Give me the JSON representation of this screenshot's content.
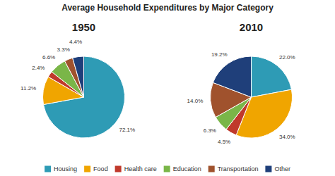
{
  "chart_data": {
    "type": "pie",
    "title": "Average Household Expenditures by Major Category",
    "categories": [
      "Housing",
      "Food",
      "Health care",
      "Education",
      "Transportation",
      "Other"
    ],
    "colors": [
      "#2E9BB5",
      "#F0A500",
      "#C0392B",
      "#7AB648",
      "#A0522D",
      "#1F3F7A"
    ],
    "series": [
      {
        "name": "1950",
        "values": [
          72.1,
          11.2,
          2.4,
          6.6,
          3.3,
          4.4
        ],
        "value_labels": [
          "72.1%",
          "11.2%",
          "2.4%",
          "6.6%",
          "3.3%",
          "4.4%"
        ]
      },
      {
        "name": "2010",
        "values": [
          22.0,
          34.0,
          4.5,
          6.3,
          14.0,
          19.2
        ],
        "value_labels": [
          "22.0%",
          "34.0%",
          "4.5%",
          "6.3%",
          "14.0%",
          "19.2%"
        ]
      }
    ],
    "data_labels": true,
    "legend": "bottom"
  }
}
